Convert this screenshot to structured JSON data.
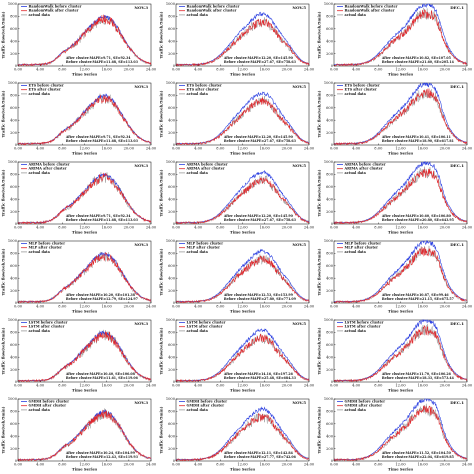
{
  "chart_data": [
    {
      "type": "line",
      "title": "NOV.3",
      "model": "RandomWalk",
      "ylabel": "Traffic flow(veh/5min)",
      "xlabel": "Time Series",
      "ylim": [
        0,
        1000
      ],
      "yticks": [
        0,
        200,
        400,
        600,
        800,
        1000
      ],
      "xticks": [
        "0:00",
        "4:00",
        "8:00",
        "12:00",
        "16:00",
        "20:00",
        "24:00"
      ],
      "profile": "a",
      "legend": [
        "RandomWalk before cluster",
        "RandomWalk after cluster",
        "actual data"
      ],
      "annotations": [
        "After cluster:MAPE=9.71, SE=92.34",
        "Before cluster:MAPE=11.68, SE=113.03"
      ]
    },
    {
      "type": "line",
      "title": "NOV.5",
      "model": "RandomWalk",
      "ylabel": "Traffic flow(veh/5min)",
      "xlabel": "Time Series",
      "ylim": [
        0,
        1000
      ],
      "yticks": [
        0,
        200,
        400,
        600,
        800,
        1000
      ],
      "xticks": [
        "0:00",
        "4:00",
        "8:00",
        "12:00",
        "16:00",
        "20:00",
        "24:00"
      ],
      "profile": "b",
      "legend": [
        "RandomWalk before cluster",
        "RandomWalk after cluster",
        "actual data"
      ],
      "annotations": [
        "After cluster:MAPE=12.20, SE=145.90",
        "Before cluster:MAPE=27.67, SE=758.63"
      ]
    },
    {
      "type": "line",
      "title": "DEC.1",
      "model": "RandomWalk",
      "ylabel": "Traffic flow(veh/5min)",
      "xlabel": "Time Series",
      "ylim": [
        0,
        1000
      ],
      "yticks": [
        0,
        200,
        400,
        600,
        800,
        1000
      ],
      "xticks": [
        "0:00",
        "4:00",
        "8:00",
        "12:00",
        "16:00",
        "20:00",
        "24:00"
      ],
      "profile": "c",
      "legend": [
        "RandomWalk before cluster",
        "RandomWalk after cluster",
        "actual data"
      ],
      "annotations": [
        "After cluster:MAPE=10.82, SE=107.05",
        "Before cluster:MAPE=21.60, SE=205.14"
      ]
    },
    {
      "type": "line",
      "title": "NOV.3",
      "model": "ETS",
      "ylabel": "Traffic flow(veh/5min)",
      "xlabel": "Time Series",
      "ylim": [
        0,
        1000
      ],
      "yticks": [
        0,
        200,
        400,
        600,
        800,
        1000
      ],
      "xticks": [
        "0:00",
        "4:00",
        "8:00",
        "12:00",
        "16:00",
        "20:00",
        "24:00"
      ],
      "profile": "a",
      "legend": [
        "ETS before cluster",
        "ETS after cluster",
        "actual data"
      ],
      "annotations": [
        "After cluster:MAPE=9.71, SE=92.34",
        "Before cluster:MAPE=11.68, SE=113.03"
      ]
    },
    {
      "type": "line",
      "title": "NOV.5",
      "model": "ETS",
      "ylabel": "Traffic flow(veh/5min)",
      "xlabel": "Time Series",
      "ylim": [
        0,
        1000
      ],
      "yticks": [
        0,
        200,
        400,
        600,
        800,
        1000
      ],
      "xticks": [
        "0:00",
        "4:00",
        "8:00",
        "12:00",
        "16:00",
        "20:00",
        "24:00"
      ],
      "profile": "b",
      "legend": [
        "ETS before cluster",
        "ETS after cluster",
        "actual data"
      ],
      "annotations": [
        "After cluster:MAPE=12.20, SE=145.90",
        "Before cluster:MAPE=27.67, SE=758.63"
      ]
    },
    {
      "type": "line",
      "title": "DEC.1",
      "model": "ETS",
      "ylabel": "Traffic flow(veh/5min)",
      "xlabel": "Time Series",
      "ylim": [
        0,
        1000
      ],
      "yticks": [
        0,
        200,
        400,
        600,
        800,
        1000
      ],
      "xticks": [
        "0:00",
        "4:00",
        "8:00",
        "12:00",
        "16:00",
        "20:00",
        "24:00"
      ],
      "profile": "c",
      "legend": [
        "ETS before cluster",
        "ETS after cluster",
        "actual data"
      ],
      "annotations": [
        "After cluster:MAPE=10.41, SE=106.11",
        "Before cluster:MAPE=18.90, SE=617.81"
      ]
    },
    {
      "type": "line",
      "title": "NOV.3",
      "model": "ARIMA",
      "ylabel": "Traffic flow(veh/5min)",
      "xlabel": "Time Series",
      "ylim": [
        0,
        1000
      ],
      "yticks": [
        0,
        200,
        400,
        600,
        800,
        1000
      ],
      "xticks": [
        "0:00",
        "4:00",
        "8:00",
        "12:00",
        "16:00",
        "20:00",
        "24:00"
      ],
      "profile": "a",
      "legend": [
        "ARIMA before cluster",
        "ARIMA after cluster",
        "actual data"
      ],
      "annotations": [
        "After cluster:MAPE=9.71, SE=92.34",
        "Before cluster:MAPE=11.68, SE=113.03"
      ]
    },
    {
      "type": "line",
      "title": "NOV.5",
      "model": "ARIMA",
      "ylabel": "Traffic flow(veh/5min)",
      "xlabel": "Time Series",
      "ylim": [
        0,
        1000
      ],
      "yticks": [
        0,
        200,
        400,
        600,
        800,
        1000
      ],
      "xticks": [
        "0:00",
        "4:00",
        "8:00",
        "12:00",
        "16:00",
        "20:00",
        "24:00"
      ],
      "profile": "b",
      "legend": [
        "ARIMA before cluster",
        "ARIMA after cluster",
        "actual data"
      ],
      "annotations": [
        "After cluster:MAPE=12.20, SE=145.90",
        "Before cluster:MAPE=27.67, SE=758.63"
      ]
    },
    {
      "type": "line",
      "title": "DEC.1",
      "model": "ARIMA",
      "ylabel": "Traffic flow(veh/5min)",
      "xlabel": "Time Series",
      "ylim": [
        0,
        1000
      ],
      "yticks": [
        0,
        200,
        400,
        600,
        800,
        1000
      ],
      "xticks": [
        "0:00",
        "4:00",
        "8:00",
        "12:00",
        "16:00",
        "20:00",
        "24:00"
      ],
      "profile": "c",
      "legend": [
        "ARIMA before cluster",
        "ARIMA after cluster",
        "actual data"
      ],
      "annotations": [
        "After cluster:MAPE=10.60, SE=106.80",
        "Before cluster:MAPE=20.80, SE=643.95"
      ]
    },
    {
      "type": "line",
      "title": "NOV.3",
      "model": "MLP",
      "ylabel": "Traffic flow(veh/5min)",
      "xlabel": "Time Series",
      "ylim": [
        0,
        1000
      ],
      "yticks": [
        0,
        200,
        400,
        600,
        800,
        1000
      ],
      "xticks": [
        "0:00",
        "4:00",
        "8:00",
        "12:00",
        "16:00",
        "20:00",
        "24:00"
      ],
      "profile": "a",
      "legend": [
        "MLP before cluster",
        "MLP after cluster",
        "actual data"
      ],
      "annotations": [
        "After cluster:MAPE=10.20, SE=101.38",
        "Before cluster:MAPE=12.79, SE=124.97"
      ]
    },
    {
      "type": "line",
      "title": "NOV.5",
      "model": "MLP",
      "ylabel": "Traffic flow(veh/5min)",
      "xlabel": "Time Series",
      "ylim": [
        0,
        1000
      ],
      "yticks": [
        0,
        200,
        400,
        600,
        800,
        1000
      ],
      "xticks": [
        "0:00",
        "4:00",
        "8:00",
        "12:00",
        "16:00",
        "20:00",
        "24:00"
      ],
      "profile": "b",
      "legend": [
        "MLP before cluster",
        "MLP after cluster",
        "actual data"
      ],
      "annotations": [
        "After cluster:MAPE=12.53, SE=153.99",
        "Before cluster:MAPE=27.80, SE=771.09"
      ]
    },
    {
      "type": "line",
      "title": "DEC.1",
      "model": "MLP",
      "ylabel": "Traffic flow(veh/5min)",
      "xlabel": "Time Series",
      "ylim": [
        0,
        1000
      ],
      "yticks": [
        0,
        200,
        400,
        600,
        800,
        1000
      ],
      "xticks": [
        "0:00",
        "4:00",
        "8:00",
        "12:00",
        "16:00",
        "20:00",
        "24:00"
      ],
      "profile": "c",
      "legend": [
        "MLP before cluster",
        "MLP after cluster",
        "actual data"
      ],
      "annotations": [
        "After cluster:MAPE=10.87, SE=99.46",
        "Before cluster:MAPE=21.15, SE=675.57"
      ]
    },
    {
      "type": "line",
      "title": "NOV.3",
      "model": "LSTM",
      "ylabel": "Traffic flow(veh/5min)",
      "xlabel": "Time Series",
      "ylim": [
        0,
        1000
      ],
      "yticks": [
        0,
        200,
        400,
        600,
        800,
        1000
      ],
      "xticks": [
        "0:00",
        "4:00",
        "8:00",
        "12:00",
        "16:00",
        "20:00",
        "24:00"
      ],
      "profile": "a",
      "legend": [
        "LSTM before cluster",
        "LSTM after cluster",
        "actual data"
      ],
      "annotations": [
        "After cluster:MAPE=10.40, SE=106.08",
        "Before cluster:MAPE=11.61, SE=119.06"
      ]
    },
    {
      "type": "line",
      "title": "NOV.5",
      "model": "LSTM",
      "ylabel": "Traffic flow(veh/5min)",
      "xlabel": "Time Series",
      "ylim": [
        0,
        1000
      ],
      "yticks": [
        0,
        200,
        400,
        600,
        800,
        1000
      ],
      "xticks": [
        "0:00",
        "4:00",
        "8:00",
        "12:00",
        "16:00",
        "20:00",
        "24:00"
      ],
      "profile": "b",
      "legend": [
        "LSTM before cluster",
        "LSTM after cluster",
        "actual data"
      ],
      "annotations": [
        "After cluster:MAPE=14.16, SE=197.26",
        "Before cluster:MAPE=25.48, SE=684.33"
      ]
    },
    {
      "type": "line",
      "title": "DEC.1",
      "model": "LSTM",
      "ylabel": "Traffic flow(veh/5min)",
      "xlabel": "Time Series",
      "ylim": [
        0,
        1000
      ],
      "yticks": [
        0,
        200,
        400,
        600,
        800,
        1000
      ],
      "xticks": [
        "0:00",
        "4:00",
        "8:00",
        "12:00",
        "16:00",
        "20:00",
        "24:00"
      ],
      "profile": "c",
      "legend": [
        "LSTM before cluster",
        "LSTM after cluster",
        "actual data"
      ],
      "annotations": [
        "After cluster:MAPE=11.70, SE=106.26",
        "Before cluster:MAPE=18.33, SE=573.44"
      ]
    },
    {
      "type": "line",
      "title": "NOV.3",
      "model": "GMDH",
      "ylabel": "Traffic flow(veh/5min)",
      "xlabel": "Time Series",
      "ylim": [
        0,
        1000
      ],
      "yticks": [
        0,
        200,
        400,
        600,
        800,
        1000
      ],
      "xticks": [
        "0:00",
        "4:00",
        "8:00",
        "12:00",
        "16:00",
        "20:00",
        "24:00"
      ],
      "profile": "a",
      "legend": [
        "GMDH before cluster",
        "GMDH after cluster",
        "actual data"
      ],
      "annotations": [
        "After cluster:MAPE=10.24, SE=104.99",
        "Before cluster:MAPE=12.43, SE=119.93"
      ]
    },
    {
      "type": "line",
      "title": "NOV.5",
      "model": "GMDH",
      "ylabel": "Traffic flow(veh/5min)",
      "xlabel": "Time Series",
      "ylim": [
        0,
        1000
      ],
      "yticks": [
        0,
        200,
        400,
        600,
        800,
        1000
      ],
      "xticks": [
        "0:00",
        "4:00",
        "8:00",
        "12:00",
        "16:00",
        "20:00",
        "24:00"
      ],
      "profile": "b",
      "legend": [
        "GMDH before cluster",
        "GMDH after cluster",
        "actual data"
      ],
      "annotations": [
        "After cluster:MAPE=12.11, SE=142.84",
        "Before cluster:MAPE=27.77, SE=742.06"
      ]
    },
    {
      "type": "line",
      "title": "DEC.1",
      "model": "GMDH",
      "ylabel": "Traffic flow(veh/5min)",
      "xlabel": "Time Series",
      "ylim": [
        0,
        1000
      ],
      "yticks": [
        0,
        200,
        400,
        600,
        800,
        1000
      ],
      "xticks": [
        "0:00",
        "4:00",
        "8:00",
        "12:00",
        "16:00",
        "20:00",
        "24:00"
      ],
      "profile": "c",
      "legend": [
        "GMDH before cluster",
        "GMDH after cluster",
        "actual data"
      ],
      "annotations": [
        "After cluster:MAPE=11.52, SE=104.50",
        "Before cluster:MAPE=22.04, SE=619.85"
      ]
    }
  ],
  "colors": {
    "before": "#2b3fe0",
    "after": "#e0262b",
    "actual": "#9a9a9a"
  }
}
